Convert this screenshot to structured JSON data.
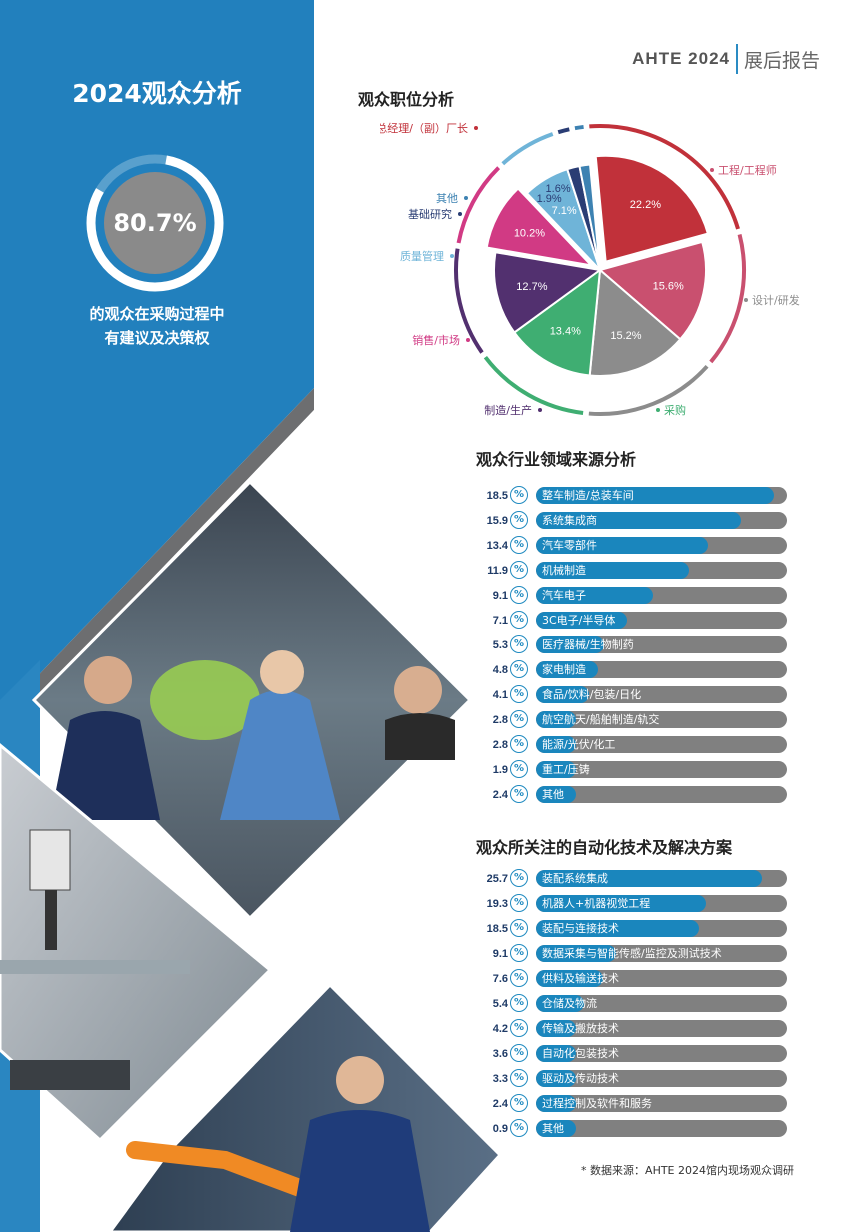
{
  "header": {
    "brand": "AHTE 2024",
    "subtitle": "展后报告"
  },
  "panel": {
    "title": "2024观众分析",
    "ring_value": "80.7%",
    "ring_fraction": 0.807,
    "caption_line1": "的观众在采购过程中",
    "caption_line2": "有建议及决策权"
  },
  "colors": {
    "primary_blue": "#2280bd",
    "dark_gray": "#6d6e70",
    "accent": "#1a86bd"
  },
  "sections": {
    "position": "观众职位分析",
    "industry": "观众行业领域来源分析",
    "technology": "观众所关注的自动化技术及解决方案"
  },
  "chart_data": [
    {
      "type": "pie",
      "title": "观众职位分析",
      "slices": [
        {
          "label": "管理/（副）总经理/（副）厂长",
          "value": 22.2,
          "value_label": "22.2%",
          "color": "#c1313a"
        },
        {
          "label": "工程/工程师",
          "value": 15.6,
          "value_label": "15.6%",
          "color": "#c9506f"
        },
        {
          "label": "设计/研发",
          "value": 15.2,
          "value_label": "15.2%",
          "color": "#8c8c8c"
        },
        {
          "label": "采购",
          "value": 13.4,
          "value_label": "13.4%",
          "color": "#3fae72"
        },
        {
          "label": "制造/生产",
          "value": 12.7,
          "value_label": "12.7%",
          "color": "#52306f"
        },
        {
          "label": "销售/市场",
          "value": 10.2,
          "value_label": "10.2%",
          "color": "#d13a84"
        },
        {
          "label": "质量管理",
          "value": 7.1,
          "value_label": "7.1%",
          "color": "#6fb4d8"
        },
        {
          "label": "基础研究",
          "value": 1.9,
          "value_label": "1.9%",
          "color": "#2a3d74"
        },
        {
          "label": "其他",
          "value": 1.6,
          "value_label": "1.6%",
          "color": "#3d82b2"
        }
      ]
    },
    {
      "type": "bar",
      "title": "观众行业领域来源分析",
      "orientation": "horizontal",
      "unit": "%",
      "categories": [
        "整车制造/总装车间",
        "系统集成商",
        "汽车零部件",
        "机械制造",
        "汽车电子",
        "3C电子/半导体",
        "医疗器械/生物制药",
        "家电制造",
        "食品/饮料/包装/日化",
        "航空航天/船舶制造/轨交",
        "能源/光伏/化工",
        "重工/压铸",
        "其他"
      ],
      "values": [
        18.5,
        15.9,
        13.4,
        11.9,
        9.1,
        7.1,
        5.3,
        4.8,
        4.1,
        2.8,
        2.8,
        1.9,
        2.4
      ],
      "value_labels": [
        "18.5",
        "15.9",
        "13.4",
        "11.9",
        "9.1",
        "7.1",
        "5.3",
        "4.8",
        "4.1",
        "2.8",
        "2.8",
        "1.9",
        "2.4"
      ]
    },
    {
      "type": "bar",
      "title": "观众所关注的自动化技术及解决方案",
      "orientation": "horizontal",
      "unit": "%",
      "categories": [
        "装配系统集成",
        "机器人+机器视觉工程",
        "装配与连接技术",
        "数据采集与智能传感/监控及测试技术",
        "供料及输送技术",
        "仓储及物流",
        "传输及搬放技术",
        "自动化包装技术",
        "驱动及传动技术",
        "过程控制及软件和服务",
        "其他"
      ],
      "values": [
        25.7,
        19.3,
        18.5,
        9.1,
        7.6,
        5.4,
        4.2,
        3.6,
        3.3,
        2.4,
        0.9
      ],
      "value_labels": [
        "25.7",
        "19.3",
        "18.5",
        "9.1",
        "7.6",
        "5.4",
        "4.2",
        "3.6",
        "3.3",
        "2.4",
        "0.9"
      ]
    }
  ],
  "pct_symbol": "%",
  "source_note": "* 数据来源：AHTE 2024馆内现场观众调研",
  "photos": [
    "exhibition-visitors-photo",
    "robot-arm-photo",
    "collaborative-robot-photo"
  ]
}
